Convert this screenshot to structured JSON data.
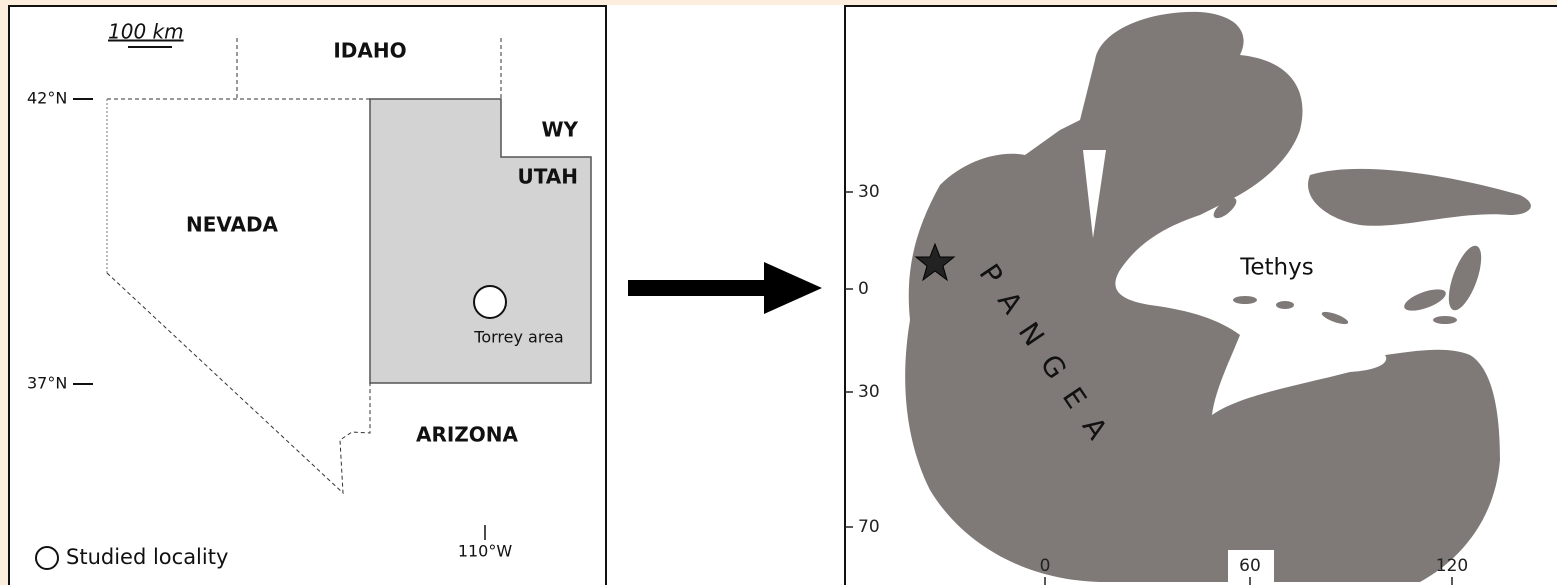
{
  "left_map": {
    "scale": "100 km",
    "states": {
      "idaho": "IDAHO",
      "wy": "WY",
      "utah": "UTAH",
      "nevada": "NEVADA",
      "arizona": "ARIZONA"
    },
    "lat_north": "42°N",
    "lat_south": "37°N",
    "longitude": "110°W",
    "site": "Torrey area",
    "legend": "Studied locality"
  },
  "right_map": {
    "sea": "Tethys",
    "continent": "PANGEA",
    "y_labels": [
      "30",
      "0",
      "30",
      "70"
    ],
    "x_labels": [
      "0",
      "60",
      "120"
    ]
  }
}
